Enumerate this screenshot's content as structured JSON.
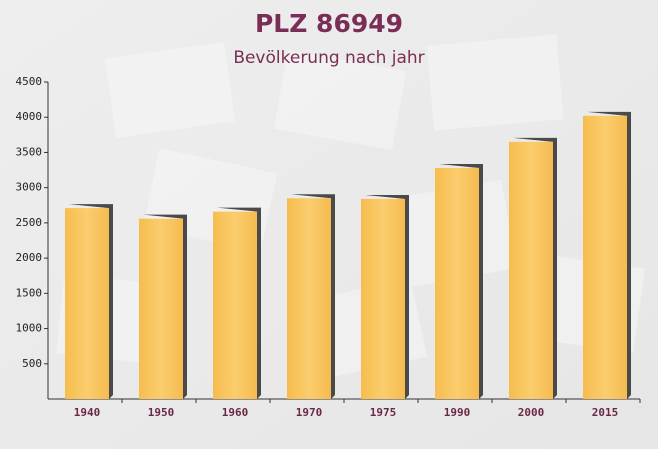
{
  "chart_data": {
    "type": "bar",
    "title": "PLZ 86949",
    "subtitle": "Bevölkerung nach jahr",
    "categories": [
      "1940",
      "1950",
      "1960",
      "1970",
      "1975",
      "1990",
      "2000",
      "2015"
    ],
    "values": [
      2710,
      2560,
      2660,
      2850,
      2840,
      3280,
      3650,
      4020
    ],
    "color": "#f8c55c",
    "ylim": [
      0,
      4500
    ],
    "yticks": [
      500,
      1000,
      1500,
      2000,
      2500,
      3000,
      3500,
      4000,
      4500
    ],
    "grid": false
  }
}
